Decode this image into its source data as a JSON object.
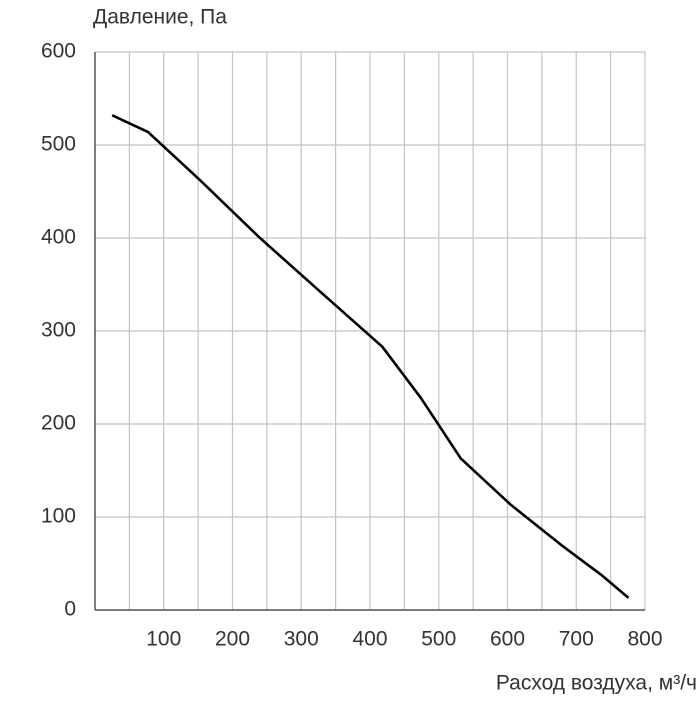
{
  "chart_data": {
    "type": "line",
    "ylabel": "Давление, Па",
    "xlabel": "Расход воздуха, м³/ч",
    "xlim": [
      0,
      800
    ],
    "ylim": [
      0,
      600
    ],
    "xticks": [
      100,
      200,
      300,
      400,
      500,
      600,
      700,
      800
    ],
    "x_gridlines": [
      50,
      100,
      150,
      200,
      250,
      300,
      350,
      400,
      450,
      500,
      550,
      600,
      650,
      700,
      750,
      800
    ],
    "yticks": [
      0,
      100,
      200,
      300,
      400,
      500,
      600
    ],
    "grid": true,
    "series": [
      {
        "color": "#000000",
        "x": [
          25,
          77,
          153,
          240,
          328,
          418,
          474,
          532,
          605,
          678,
          736,
          776
        ],
        "values": [
          532,
          514,
          462,
          400,
          342,
          283,
          228,
          163,
          113,
          70,
          38,
          13
        ]
      }
    ]
  }
}
